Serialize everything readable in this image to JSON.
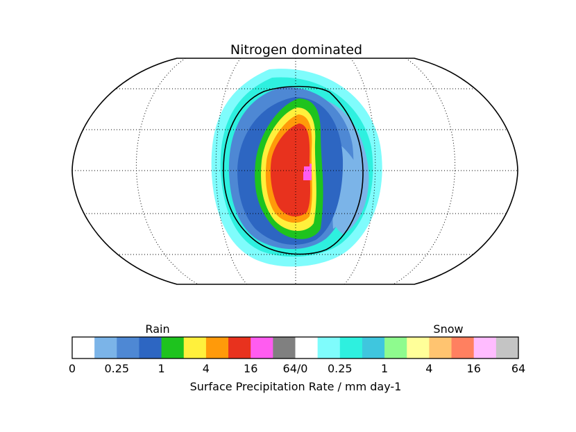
{
  "chart_data": {
    "type": "heatmap",
    "title": "Nitrogen dominated",
    "projection": "robinson",
    "gridlines": true,
    "map_regions": [
      {
        "name": "light-snow",
        "level": "0.125-0.25 snow",
        "color": "#7ffcfc"
      },
      {
        "name": "cyan-snow",
        "level": "0.25-0.5 snow",
        "color": "#2ef0df"
      },
      {
        "name": "light-blue-rain",
        "level": "0.125-0.25 rain",
        "color": "#7bb4e8"
      },
      {
        "name": "medium-blue-rain",
        "level": "0.25-0.5 rain",
        "color": "#4e88d4"
      },
      {
        "name": "dark-blue-rain",
        "level": "0.5-1 rain",
        "color": "#2d66c2"
      },
      {
        "name": "green-rain",
        "level": "1-2 rain",
        "color": "#1ec31e"
      },
      {
        "name": "yellow-rain",
        "level": "2-4 rain",
        "color": "#fff03c"
      },
      {
        "name": "orange-rain",
        "level": "4-8 rain",
        "color": "#ff9a0a"
      },
      {
        "name": "red-rain",
        "level": "8-16 rain",
        "color": "#e8321e"
      },
      {
        "name": "magenta-rain",
        "level": "16-32 rain",
        "color": "#ff5cf0"
      }
    ],
    "colorbar": {
      "rain_label": "Rain",
      "snow_label": "Snow",
      "xlabel": "Surface Precipitation Rate / mm day-1",
      "tick_labels": [
        "0",
        "0.25",
        "1",
        "4",
        "16",
        "64/0",
        "0.25",
        "1",
        "4",
        "16",
        "64"
      ],
      "rain_colors": [
        "#ffffff",
        "#7bb4e8",
        "#4e88d4",
        "#2d66c2",
        "#1ec31e",
        "#fff03c",
        "#ff9a0a",
        "#e8321e",
        "#ff5cf0",
        "#808080"
      ],
      "snow_colors": [
        "#ffffff",
        "#7ffcfc",
        "#2ef0df",
        "#3fc6de",
        "#8efb8e",
        "#ffff99",
        "#ffc470",
        "#ff8060",
        "#ffbcff",
        "#c4c4c4"
      ]
    }
  }
}
